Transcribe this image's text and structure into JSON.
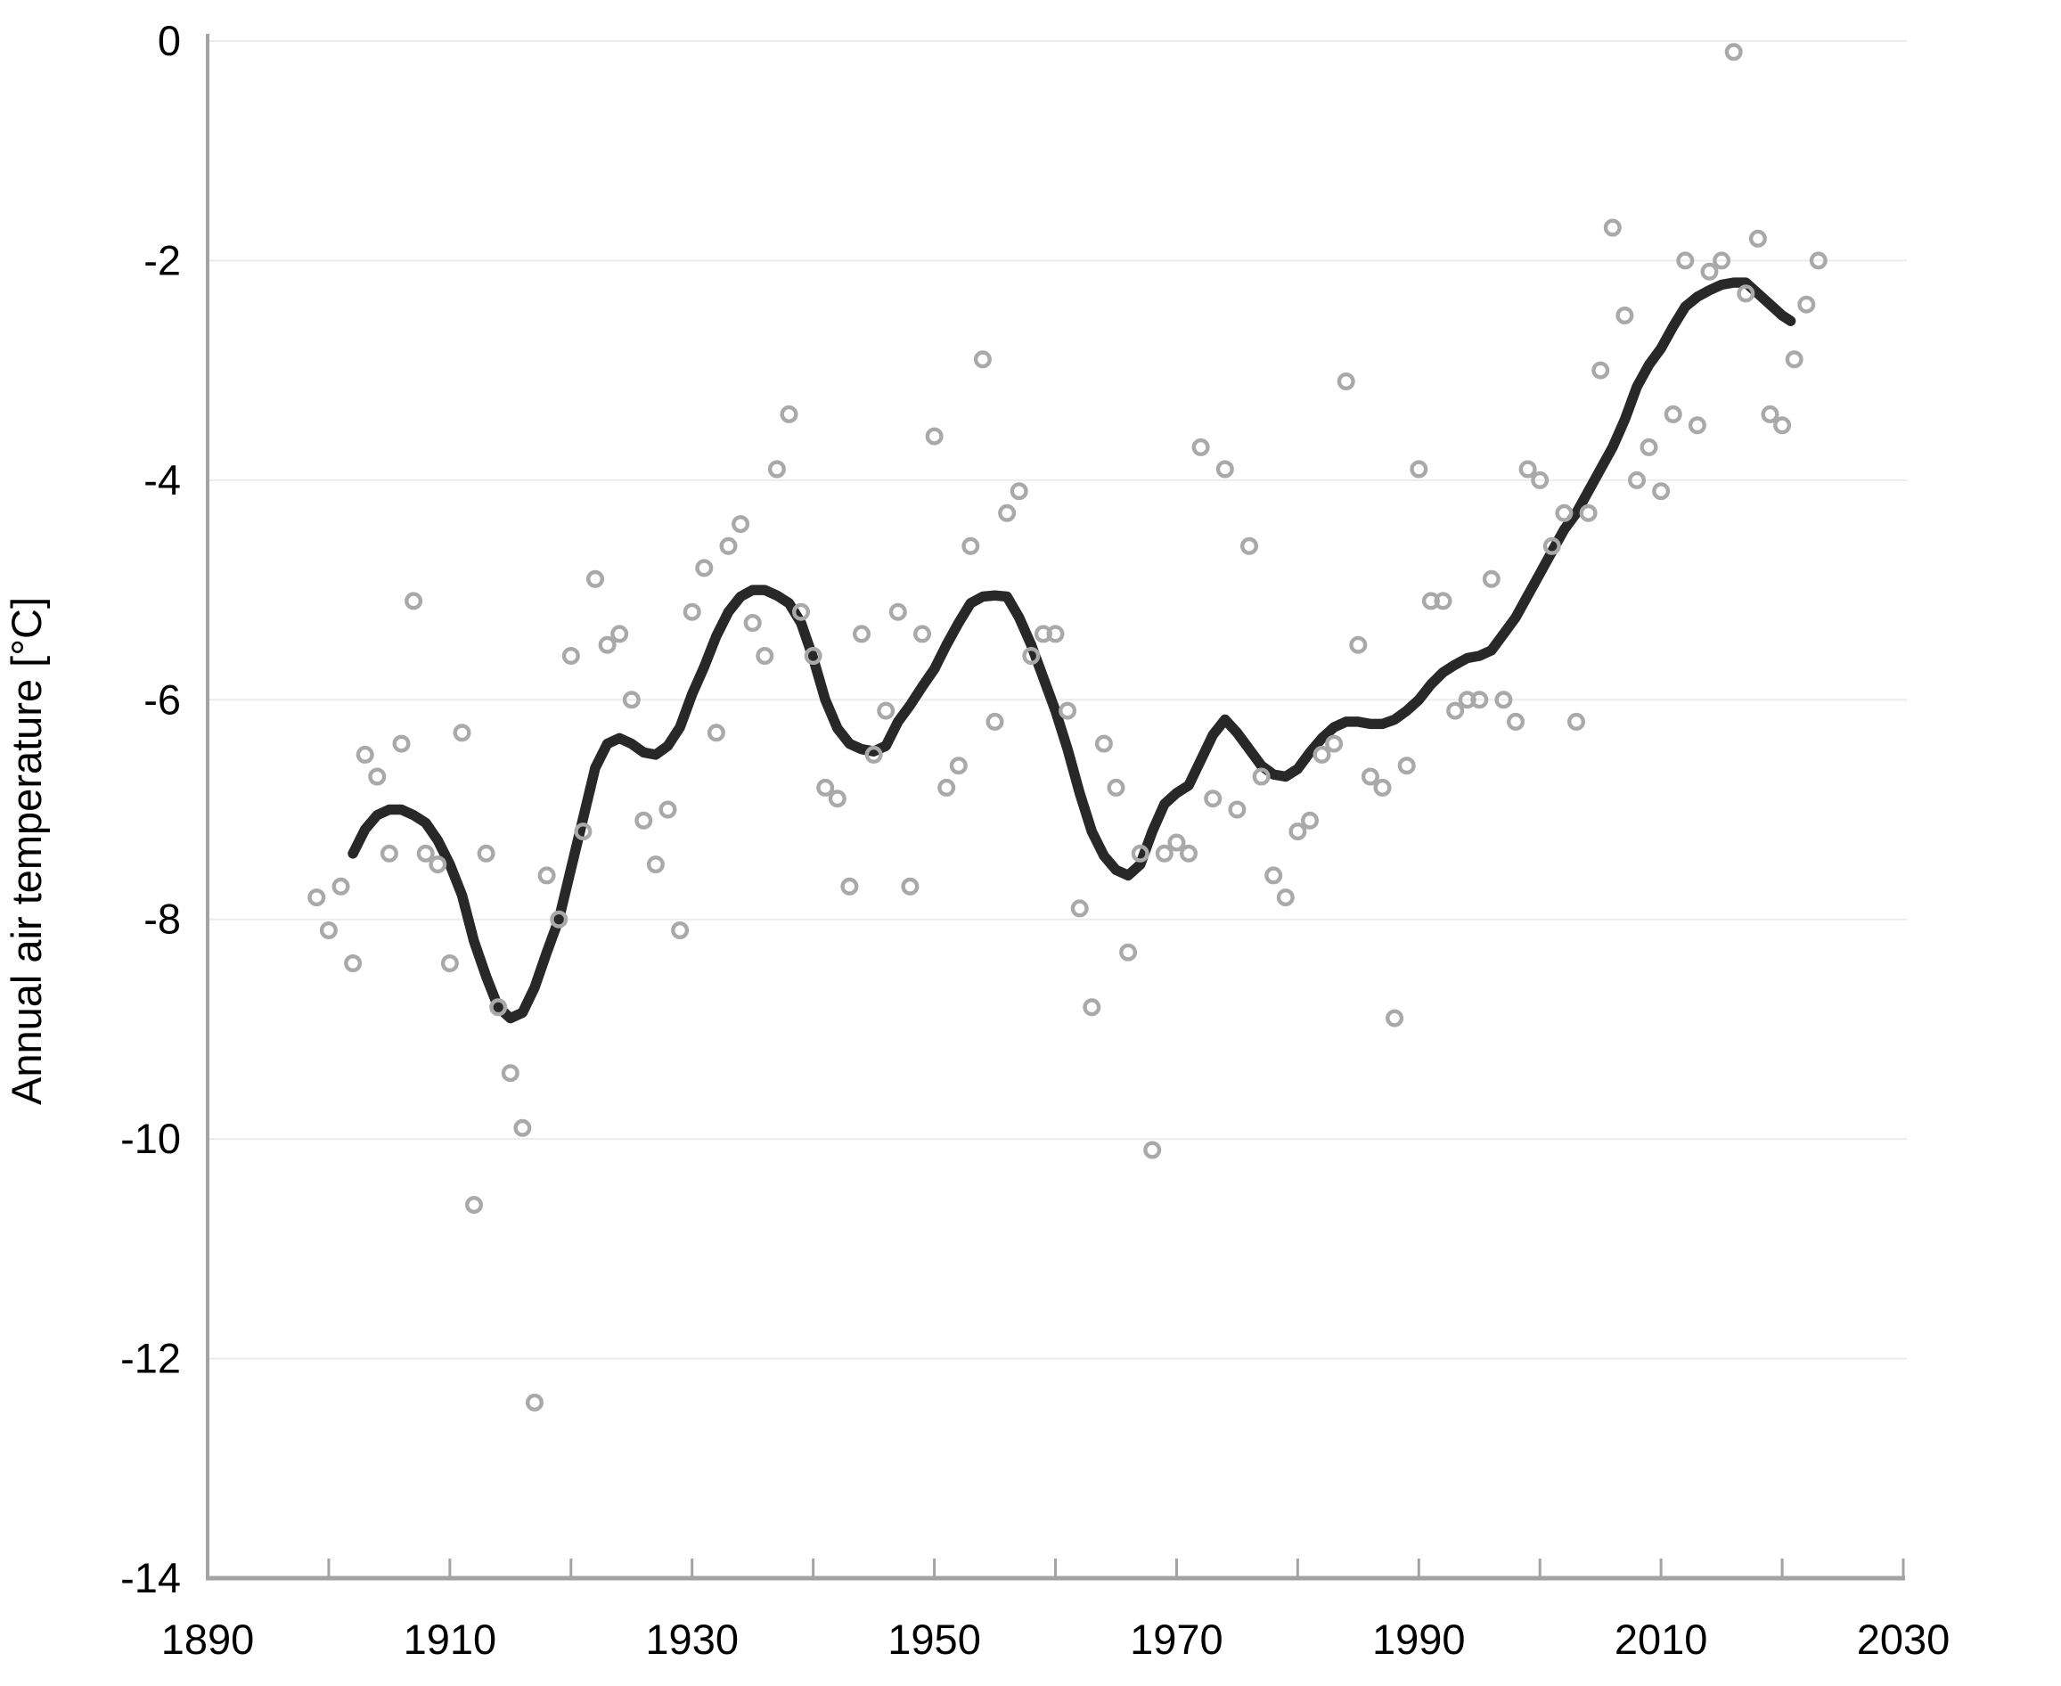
{
  "chart_data": {
    "type": "scatter",
    "title": "",
    "xlabel": "",
    "ylabel": "Annual air temperature [°C]",
    "xlim": [
      1890,
      2030
    ],
    "ylim": [
      -14,
      0
    ],
    "grid": "horizontal",
    "legend": "none",
    "x_tick_labels": [
      1890,
      1910,
      1930,
      1950,
      1970,
      1990,
      2010,
      2030
    ],
    "x_tick_marks": [
      1900,
      1910,
      1920,
      1930,
      1940,
      1950,
      1960,
      1970,
      1980,
      1990,
      2000,
      2010,
      2020,
      2030
    ],
    "y_tick_labels": [
      0,
      -2,
      -4,
      -6,
      -8,
      -10,
      -12,
      -14
    ],
    "colors": {
      "scatter_stroke": "#a9a9a9",
      "trend_stroke": "#282828",
      "gridline": "#ececec",
      "axis": "#a3a3a3",
      "text": "#000000",
      "background": "#ffffff"
    },
    "series": [
      {
        "name": "annual-values",
        "type": "scatter",
        "points": [
          [
            1899,
            -7.8
          ],
          [
            1900,
            -8.1
          ],
          [
            1901,
            -7.7
          ],
          [
            1902,
            -8.4
          ],
          [
            1903,
            -6.5
          ],
          [
            1904,
            -6.7
          ],
          [
            1905,
            -7.4
          ],
          [
            1906,
            -6.4
          ],
          [
            1907,
            -5.1
          ],
          [
            1908,
            -7.4
          ],
          [
            1909,
            -7.5
          ],
          [
            1910,
            -8.4
          ],
          [
            1911,
            -6.3
          ],
          [
            1912,
            -10.6
          ],
          [
            1913,
            -7.4
          ],
          [
            1914,
            -8.8
          ],
          [
            1915,
            -9.4
          ],
          [
            1916,
            -9.9
          ],
          [
            1917,
            -12.4
          ],
          [
            1918,
            -7.6
          ],
          [
            1919,
            -8.0
          ],
          [
            1920,
            -5.6
          ],
          [
            1921,
            -7.2
          ],
          [
            1922,
            -4.9
          ],
          [
            1923,
            -5.5
          ],
          [
            1924,
            -5.4
          ],
          [
            1925,
            -6.0
          ],
          [
            1926,
            -7.1
          ],
          [
            1927,
            -7.5
          ],
          [
            1928,
            -7.0
          ],
          [
            1929,
            -8.1
          ],
          [
            1930,
            -5.2
          ],
          [
            1931,
            -4.8
          ],
          [
            1932,
            -6.3
          ],
          [
            1933,
            -4.6
          ],
          [
            1934,
            -4.4
          ],
          [
            1935,
            -5.3
          ],
          [
            1936,
            -5.6
          ],
          [
            1937,
            -3.9
          ],
          [
            1938,
            -3.4
          ],
          [
            1939,
            -5.2
          ],
          [
            1940,
            -5.6
          ],
          [
            1941,
            -6.8
          ],
          [
            1942,
            -6.9
          ],
          [
            1943,
            -7.7
          ],
          [
            1944,
            -5.4
          ],
          [
            1945,
            -6.5
          ],
          [
            1946,
            -6.1
          ],
          [
            1947,
            -5.2
          ],
          [
            1948,
            -7.7
          ],
          [
            1949,
            -5.4
          ],
          [
            1950,
            -3.6
          ],
          [
            1951,
            -6.8
          ],
          [
            1952,
            -6.6
          ],
          [
            1953,
            -4.6
          ],
          [
            1954,
            -2.9
          ],
          [
            1955,
            -6.2
          ],
          [
            1956,
            -4.3
          ],
          [
            1957,
            -4.1
          ],
          [
            1958,
            -5.6
          ],
          [
            1959,
            -5.4
          ],
          [
            1960,
            -5.4
          ],
          [
            1961,
            -6.1
          ],
          [
            1962,
            -7.9
          ],
          [
            1963,
            -8.8
          ],
          [
            1964,
            -6.4
          ],
          [
            1965,
            -6.8
          ],
          [
            1966,
            -8.3
          ],
          [
            1967,
            -7.4
          ],
          [
            1968,
            -10.1
          ],
          [
            1969,
            -7.4
          ],
          [
            1970,
            -7.3
          ],
          [
            1971,
            -7.4
          ],
          [
            1972,
            -3.7
          ],
          [
            1973,
            -6.9
          ],
          [
            1974,
            -3.9
          ],
          [
            1975,
            -7.0
          ],
          [
            1976,
            -4.6
          ],
          [
            1977,
            -6.7
          ],
          [
            1978,
            -7.6
          ],
          [
            1979,
            -7.8
          ],
          [
            1980,
            -7.2
          ],
          [
            1981,
            -7.1
          ],
          [
            1982,
            -6.5
          ],
          [
            1983,
            -6.4
          ],
          [
            1984,
            -3.1
          ],
          [
            1985,
            -5.5
          ],
          [
            1986,
            -6.7
          ],
          [
            1987,
            -6.8
          ],
          [
            1988,
            -8.9
          ],
          [
            1989,
            -6.6
          ],
          [
            1990,
            -3.9
          ],
          [
            1991,
            -5.1
          ],
          [
            1992,
            -5.1
          ],
          [
            1993,
            -6.1
          ],
          [
            1994,
            -6.0
          ],
          [
            1995,
            -6.0
          ],
          [
            1996,
            -4.9
          ],
          [
            1997,
            -6.0
          ],
          [
            1998,
            -6.2
          ],
          [
            1999,
            -3.9
          ],
          [
            2000,
            -4.0
          ],
          [
            2001,
            -4.6
          ],
          [
            2002,
            -4.3
          ],
          [
            2003,
            -6.2
          ],
          [
            2004,
            -4.3
          ],
          [
            2005,
            -3.0
          ],
          [
            2006,
            -1.7
          ],
          [
            2007,
            -2.5
          ],
          [
            2008,
            -4.0
          ],
          [
            2009,
            -3.7
          ],
          [
            2010,
            -4.1
          ],
          [
            2011,
            -3.4
          ],
          [
            2012,
            -2.0
          ],
          [
            2013,
            -3.5
          ],
          [
            2014,
            -2.1
          ],
          [
            2015,
            -2.0
          ],
          [
            2016,
            -0.1
          ],
          [
            2017,
            -2.3
          ],
          [
            2018,
            -1.8
          ],
          [
            2019,
            -3.4
          ],
          [
            2020,
            -3.5
          ],
          [
            2021,
            -2.9
          ],
          [
            2022,
            -2.4
          ],
          [
            2023,
            -2.0
          ]
        ]
      },
      {
        "name": "smoothed-trend",
        "type": "line",
        "points": [
          [
            1902,
            -7.4
          ],
          [
            1903,
            -7.18
          ],
          [
            1904,
            -7.05
          ],
          [
            1905,
            -7.0
          ],
          [
            1906,
            -7.0
          ],
          [
            1907,
            -7.05
          ],
          [
            1908,
            -7.12
          ],
          [
            1909,
            -7.28
          ],
          [
            1910,
            -7.5
          ],
          [
            1911,
            -7.78
          ],
          [
            1912,
            -8.2
          ],
          [
            1913,
            -8.52
          ],
          [
            1914,
            -8.8
          ],
          [
            1915,
            -8.9
          ],
          [
            1916,
            -8.85
          ],
          [
            1917,
            -8.62
          ],
          [
            1918,
            -8.3
          ],
          [
            1919,
            -8.0
          ],
          [
            1920,
            -7.54
          ],
          [
            1921,
            -7.08
          ],
          [
            1922,
            -6.62
          ],
          [
            1923,
            -6.4
          ],
          [
            1924,
            -6.35
          ],
          [
            1925,
            -6.4
          ],
          [
            1926,
            -6.48
          ],
          [
            1927,
            -6.5
          ],
          [
            1928,
            -6.42
          ],
          [
            1929,
            -6.25
          ],
          [
            1930,
            -5.95
          ],
          [
            1931,
            -5.7
          ],
          [
            1932,
            -5.42
          ],
          [
            1933,
            -5.2
          ],
          [
            1934,
            -5.06
          ],
          [
            1935,
            -5.0
          ],
          [
            1936,
            -5.0
          ],
          [
            1937,
            -5.05
          ],
          [
            1938,
            -5.12
          ],
          [
            1939,
            -5.3
          ],
          [
            1940,
            -5.62
          ],
          [
            1941,
            -6.0
          ],
          [
            1942,
            -6.26
          ],
          [
            1943,
            -6.4
          ],
          [
            1944,
            -6.45
          ],
          [
            1945,
            -6.47
          ],
          [
            1946,
            -6.42
          ],
          [
            1947,
            -6.2
          ],
          [
            1948,
            -6.05
          ],
          [
            1949,
            -5.88
          ],
          [
            1950,
            -5.72
          ],
          [
            1951,
            -5.5
          ],
          [
            1952,
            -5.3
          ],
          [
            1953,
            -5.12
          ],
          [
            1954,
            -5.06
          ],
          [
            1955,
            -5.05
          ],
          [
            1956,
            -5.06
          ],
          [
            1957,
            -5.25
          ],
          [
            1958,
            -5.5
          ],
          [
            1959,
            -5.8
          ],
          [
            1960,
            -6.1
          ],
          [
            1961,
            -6.45
          ],
          [
            1962,
            -6.85
          ],
          [
            1963,
            -7.2
          ],
          [
            1964,
            -7.42
          ],
          [
            1965,
            -7.55
          ],
          [
            1966,
            -7.6
          ],
          [
            1967,
            -7.5
          ],
          [
            1968,
            -7.2
          ],
          [
            1969,
            -6.95
          ],
          [
            1970,
            -6.85
          ],
          [
            1971,
            -6.78
          ],
          [
            1972,
            -6.55
          ],
          [
            1973,
            -6.32
          ],
          [
            1974,
            -6.18
          ],
          [
            1975,
            -6.3
          ],
          [
            1976,
            -6.45
          ],
          [
            1977,
            -6.6
          ],
          [
            1978,
            -6.68
          ],
          [
            1979,
            -6.7
          ],
          [
            1980,
            -6.63
          ],
          [
            1981,
            -6.48
          ],
          [
            1982,
            -6.35
          ],
          [
            1983,
            -6.25
          ],
          [
            1984,
            -6.2
          ],
          [
            1985,
            -6.2
          ],
          [
            1986,
            -6.22
          ],
          [
            1987,
            -6.22
          ],
          [
            1988,
            -6.18
          ],
          [
            1989,
            -6.1
          ],
          [
            1990,
            -6.0
          ],
          [
            1991,
            -5.86
          ],
          [
            1992,
            -5.75
          ],
          [
            1993,
            -5.68
          ],
          [
            1994,
            -5.62
          ],
          [
            1995,
            -5.6
          ],
          [
            1996,
            -5.55
          ],
          [
            1997,
            -5.4
          ],
          [
            1998,
            -5.25
          ],
          [
            1999,
            -5.05
          ],
          [
            2000,
            -4.85
          ],
          [
            2001,
            -4.65
          ],
          [
            2002,
            -4.45
          ],
          [
            2003,
            -4.3
          ],
          [
            2004,
            -4.1
          ],
          [
            2005,
            -3.9
          ],
          [
            2006,
            -3.7
          ],
          [
            2007,
            -3.45
          ],
          [
            2008,
            -3.15
          ],
          [
            2009,
            -2.95
          ],
          [
            2010,
            -2.8
          ],
          [
            2011,
            -2.6
          ],
          [
            2012,
            -2.42
          ],
          [
            2013,
            -2.33
          ],
          [
            2014,
            -2.27
          ],
          [
            2015,
            -2.22
          ],
          [
            2016,
            -2.2
          ],
          [
            2017,
            -2.2
          ],
          [
            2018,
            -2.3
          ],
          [
            2019,
            -2.4
          ],
          [
            2020,
            -2.5
          ],
          [
            2020.7,
            -2.55
          ]
        ]
      }
    ]
  }
}
